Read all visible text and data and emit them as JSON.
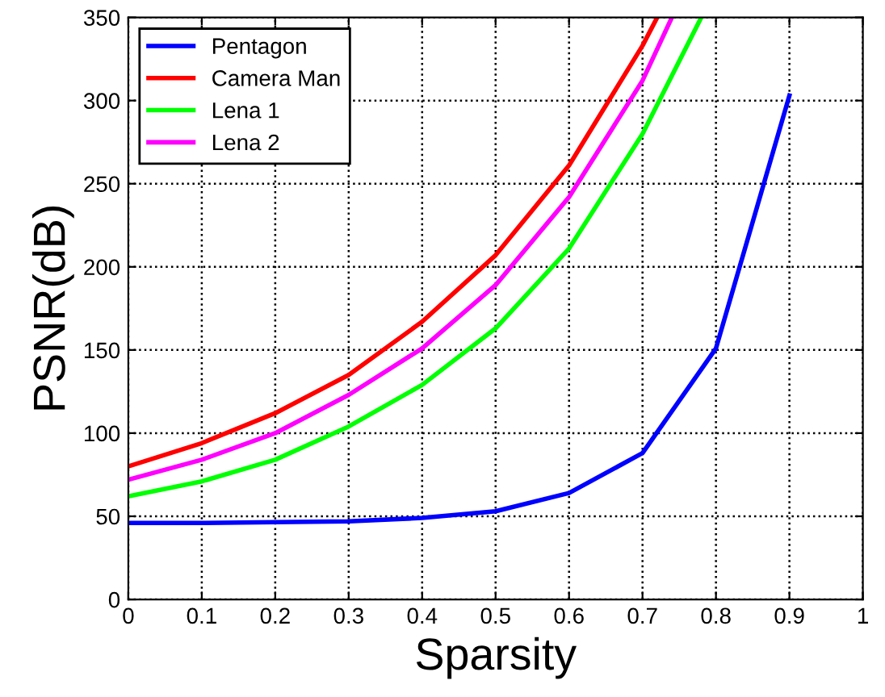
{
  "chart_data": {
    "type": "line",
    "xlabel": "Sparsity",
    "ylabel": "PSNR(dB)",
    "x": [
      0,
      0.1,
      0.2,
      0.3,
      0.4,
      0.5,
      0.6,
      0.7,
      0.8,
      0.9
    ],
    "series": [
      {
        "name": "Pentagon",
        "color": "#0000ff",
        "values": [
          46,
          46,
          46.5,
          47,
          49,
          53,
          64,
          88,
          151,
          303
        ]
      },
      {
        "name": "Camera Man",
        "color": "#ff0000",
        "x": [
          0,
          0.1,
          0.2,
          0.3,
          0.4,
          0.5,
          0.6,
          0.7,
          0.72
        ],
        "values": [
          80,
          94,
          112,
          135,
          167,
          207,
          261,
          333,
          350
        ]
      },
      {
        "name": "Lena 1",
        "color": "#00ff00",
        "x": [
          0,
          0.1,
          0.2,
          0.3,
          0.4,
          0.5,
          0.6,
          0.7,
          0.78
        ],
        "values": [
          62,
          71,
          84,
          104,
          129,
          163,
          211,
          280,
          350
        ]
      },
      {
        "name": "Lena 2",
        "color": "#ff00ff",
        "x": [
          0,
          0.1,
          0.2,
          0.3,
          0.4,
          0.5,
          0.6,
          0.7,
          0.74
        ],
        "values": [
          72,
          84,
          100,
          123,
          151,
          189,
          242,
          312,
          350
        ]
      }
    ],
    "xlim": [
      0,
      1
    ],
    "xticks": [
      0,
      0.1,
      0.2,
      0.3,
      0.4,
      0.5,
      0.6,
      0.7,
      0.8,
      0.9,
      1
    ],
    "ylim": [
      0,
      350
    ],
    "yticks": [
      0,
      50,
      100,
      150,
      200,
      250,
      300,
      350
    ],
    "grid": true,
    "legend": "top left",
    "marker": "none",
    "line_style": "solid"
  }
}
